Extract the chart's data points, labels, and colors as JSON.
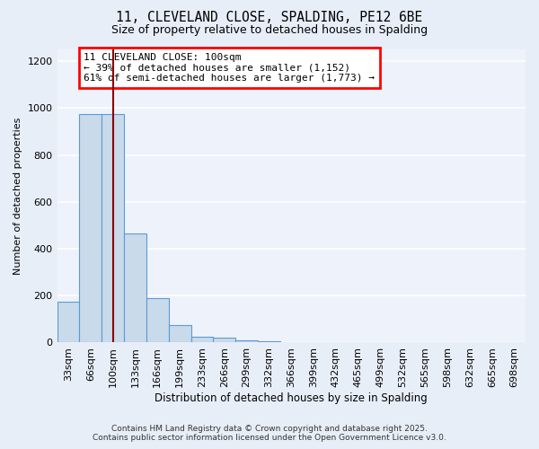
{
  "title1": "11, CLEVELAND CLOSE, SPALDING, PE12 6BE",
  "title2": "Size of property relative to detached houses in Spalding",
  "xlabel": "Distribution of detached houses by size in Spalding",
  "ylabel": "Number of detached properties",
  "bins": [
    "33sqm",
    "66sqm",
    "100sqm",
    "133sqm",
    "166sqm",
    "199sqm",
    "233sqm",
    "266sqm",
    "299sqm",
    "332sqm",
    "366sqm",
    "399sqm",
    "432sqm",
    "465sqm",
    "499sqm",
    "532sqm",
    "565sqm",
    "598sqm",
    "632sqm",
    "665sqm",
    "698sqm"
  ],
  "values": [
    175,
    975,
    975,
    465,
    190,
    75,
    25,
    20,
    10,
    5,
    3,
    2,
    1,
    1,
    1,
    1,
    1,
    1,
    1,
    1,
    1
  ],
  "bar_color": "#c9daea",
  "bar_edge_color": "#5b9bd5",
  "red_line_index": 2,
  "annotation_text": "11 CLEVELAND CLOSE: 100sqm\n← 39% of detached houses are smaller (1,152)\n61% of semi-detached houses are larger (1,773) →",
  "annotation_box_color": "white",
  "annotation_box_edge": "red",
  "footer1": "Contains HM Land Registry data © Crown copyright and database right 2025.",
  "footer2": "Contains public sector information licensed under the Open Government Licence v3.0.",
  "ylim": [
    0,
    1250
  ],
  "yticks": [
    0,
    200,
    400,
    600,
    800,
    1000,
    1200
  ],
  "bg_color": "#e8eef8",
  "plot_bg_color": "#eef2fb"
}
